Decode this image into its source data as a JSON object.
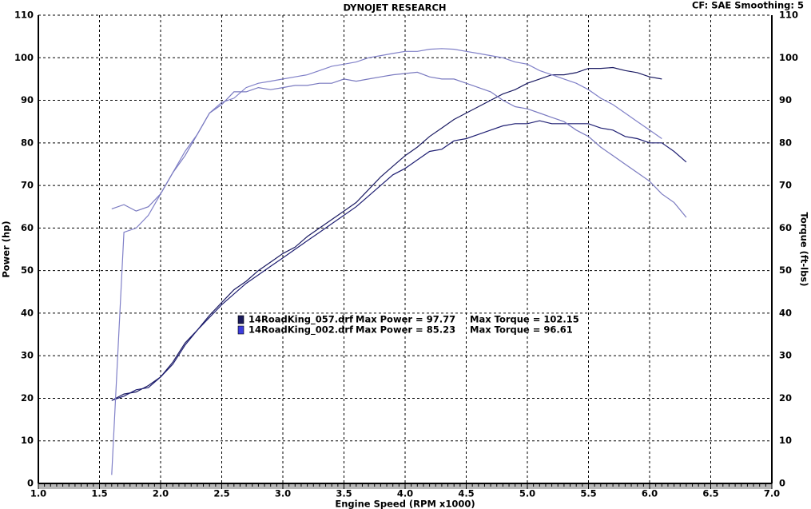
{
  "chart_data": {
    "type": "line",
    "title": "DYNOJET RESEARCH",
    "subtitle": "CF: SAE  Smoothing: 5",
    "x_label": "Engine Speed (RPM x1000)",
    "y_label": "Power (hp)",
    "y2_label": "Torque (ft-lbs)",
    "x": [
      1.6,
      1.7,
      1.8,
      1.9,
      2.0,
      2.1,
      2.2,
      2.3,
      2.4,
      2.5,
      2.6,
      2.7,
      2.8,
      2.9,
      3.0,
      3.1,
      3.2,
      3.3,
      3.4,
      3.5,
      3.6,
      3.7,
      3.8,
      3.9,
      4.0,
      4.1,
      4.2,
      4.3,
      4.4,
      4.5,
      4.6,
      4.7,
      4.8,
      4.9,
      5.0,
      5.1,
      5.2,
      5.3,
      5.4,
      5.5,
      5.6,
      5.7,
      5.8,
      5.9,
      6.0,
      6.1,
      6.2,
      6.3
    ],
    "series": [
      {
        "name": "14RoadKing_057.drf",
        "color": "#1a1a62",
        "values": [
          19.5,
          21,
          21.5,
          23,
          25,
          28.5,
          33,
          36,
          39.5,
          42.5,
          45.5,
          47.5,
          50,
          52,
          54,
          55.5,
          58,
          60,
          62,
          64,
          66,
          69,
          72,
          74.5,
          77,
          79,
          81.5,
          83.5,
          85.5,
          87,
          88.5,
          90,
          91.5,
          92.5,
          94,
          95,
          96,
          96,
          96.5,
          97.5,
          97.5,
          97.7,
          97,
          96.5,
          95.5,
          95,
          null,
          null
        ]
      },
      {
        "name": "14RoadKing_002.drf",
        "color": "#1e1e72",
        "values": [
          19.5,
          20.5,
          22,
          22.5,
          25,
          28,
          32.5,
          36,
          39,
          42,
          44.5,
          47,
          49,
          51,
          53,
          55,
          57,
          59,
          61,
          63,
          65,
          67.5,
          70,
          72.5,
          74,
          76,
          78,
          78.5,
          80.5,
          81,
          82,
          83,
          84,
          84.5,
          84.5,
          85.2,
          84.5,
          84.5,
          84.5,
          84.5,
          83.5,
          83,
          81.5,
          81,
          80,
          80,
          78,
          75.5
        ]
      },
      {
        "name": "14RoadKing_057.drf",
        "color": "#8080c8",
        "axis": "y2",
        "values": [
          2,
          59,
          60,
          63,
          68,
          73,
          78,
          82,
          87,
          89.5,
          90.5,
          93,
          94,
          94.5,
          95,
          95.5,
          96,
          97,
          98,
          98.5,
          99,
          100,
          100.5,
          101,
          101.5,
          101.5,
          102,
          102.15,
          102,
          101.5,
          101,
          100.5,
          100,
          99,
          98.5,
          97,
          96,
          95,
          94,
          92.5,
          90.5,
          89,
          87,
          85,
          83,
          81,
          null,
          null
        ]
      },
      {
        "name": "14RoadKing_002.drf",
        "color": "#7a7ac0",
        "axis": "y2",
        "values": [
          64.5,
          65.5,
          64,
          65,
          68,
          73,
          77,
          82,
          87,
          89,
          92,
          92,
          93,
          92.5,
          93,
          93.5,
          93.5,
          94,
          94,
          95,
          94.5,
          95,
          95.5,
          96,
          96.3,
          96.6,
          95.5,
          95,
          95,
          94,
          93,
          92,
          90,
          88.5,
          88,
          87,
          86,
          85,
          83,
          81.5,
          79,
          77,
          75,
          73,
          71,
          68,
          66,
          62.5
        ]
      }
    ],
    "legend": [
      {
        "name": "14RoadKing_057.drf",
        "power": "Max Power = 97.77",
        "torque": "Max Torque = 102.15",
        "color": "#1a1a5a"
      },
      {
        "name": "14RoadKing_002.drf",
        "power": "Max Power = 85.23",
        "torque": "Max Torque = 96.61",
        "color": "#3c3cdc"
      }
    ],
    "xlim": [
      1,
      7
    ],
    "xticks": [
      {
        "value": 1,
        "label": "1.0"
      },
      1.5,
      {
        "value": 2,
        "label": "2.0"
      },
      2.5,
      {
        "value": 3,
        "label": "3.0"
      },
      3.5,
      {
        "value": 4,
        "label": "4.0"
      },
      4.5,
      {
        "value": 5,
        "label": "5.0"
      },
      5.5,
      {
        "value": 6,
        "label": "6.0"
      },
      6.5,
      {
        "value": 7,
        "label": "7.0"
      }
    ],
    "ylim": [
      0,
      110
    ],
    "yticks": [
      0,
      10,
      20,
      30,
      40,
      50,
      60,
      70,
      80,
      90,
      100,
      110
    ],
    "y2lim": [
      0,
      110
    ],
    "y2ticks": [
      0,
      10,
      20,
      30,
      40,
      50,
      60,
      70,
      80,
      90,
      100,
      110
    ],
    "grid": true
  }
}
